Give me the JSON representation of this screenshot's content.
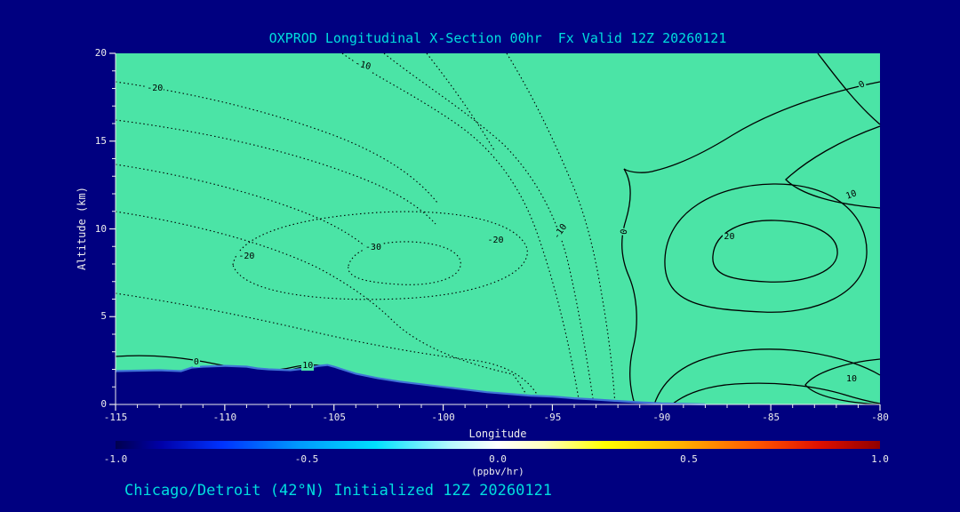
{
  "window": {
    "background": "#000080"
  },
  "chart_data": {
    "type": "contour",
    "title": "OXPROD Longitudinal X-Section 00hr  Fx Valid 12Z 20260121",
    "subtitle": "Chicago/Detroit (42°N) Initialized 12Z 20260121",
    "xlabel": "Longitude",
    "ylabel": "Altitude (km)",
    "xlim": [
      -115,
      -80
    ],
    "ylim": [
      0,
      20
    ],
    "x_ticks": [
      -115,
      -110,
      -105,
      -100,
      -95,
      -90,
      -85,
      -80
    ],
    "y_ticks": [
      0,
      5,
      10,
      15,
      20
    ],
    "grid": false,
    "plot_fill": "#4be4a6",
    "contour_line_color": "#000000",
    "negative_contour_style": "dotted",
    "positive_contour_style": "solid",
    "contour_labels": [
      {
        "value": "-20",
        "lon": -113.2,
        "alt": 18.0,
        "rot": 0
      },
      {
        "value": "-10",
        "lon": -103.7,
        "alt": 19.3,
        "rot": 15
      },
      {
        "value": "-20",
        "lon": -109.0,
        "alt": 8.4,
        "rot": 0
      },
      {
        "value": "-30",
        "lon": -103.2,
        "alt": 8.9,
        "rot": 0
      },
      {
        "value": "-20",
        "lon": -97.6,
        "alt": 9.3,
        "rot": 0
      },
      {
        "value": "-10",
        "lon": -94.6,
        "alt": 9.8,
        "rot": -55
      },
      {
        "value": "0",
        "lon": -91.7,
        "alt": 9.8,
        "rot": -78
      },
      {
        "value": "20",
        "lon": -86.9,
        "alt": 9.5,
        "rot": 0
      },
      {
        "value": "10",
        "lon": -81.3,
        "alt": 11.9,
        "rot": -20
      },
      {
        "value": "0",
        "lon": -80.8,
        "alt": 18.2,
        "rot": -30
      },
      {
        "value": "10",
        "lon": -81.3,
        "alt": 1.4,
        "rot": 0
      },
      {
        "value": "0",
        "lon": -111.3,
        "alt": 2.4,
        "rot": 0
      },
      {
        "value": "10",
        "lon": -106.2,
        "alt": 2.2,
        "rot": 0
      }
    ],
    "terrain": [
      [
        -115,
        1.9
      ],
      [
        -113,
        1.95
      ],
      [
        -112,
        1.9
      ],
      [
        -111.5,
        2.1
      ],
      [
        -111,
        2.15
      ],
      [
        -110,
        2.2
      ],
      [
        -109,
        2.15
      ],
      [
        -108.5,
        2.05
      ],
      [
        -108,
        2.0
      ],
      [
        -107,
        1.95
      ],
      [
        -106.3,
        2.05
      ],
      [
        -105.7,
        2.2
      ],
      [
        -105.3,
        2.25
      ],
      [
        -105,
        2.15
      ],
      [
        -104.5,
        1.95
      ],
      [
        -104,
        1.75
      ],
      [
        -103,
        1.5
      ],
      [
        -102,
        1.3
      ],
      [
        -101,
        1.15
      ],
      [
        -100,
        1.0
      ],
      [
        -99,
        0.85
      ],
      [
        -98,
        0.7
      ],
      [
        -97,
        0.6
      ],
      [
        -96,
        0.5
      ],
      [
        -95,
        0.45
      ],
      [
        -94,
        0.35
      ],
      [
        -93,
        0.28
      ],
      [
        -92,
        0.2
      ],
      [
        -91,
        0.12
      ],
      [
        -90,
        0.06
      ],
      [
        -89,
        0.03
      ],
      [
        -88,
        0.0
      ]
    ],
    "terrain_fill": "#000080",
    "terrain_edge_color": "#3f74d8",
    "colorbar": {
      "range": [
        -1,
        1
      ],
      "ticks": [
        {
          "v": -1.0,
          "label": "-1.0"
        },
        {
          "v": -0.5,
          "label": "-0.5"
        },
        {
          "v": 0.0,
          "label": "0.0"
        },
        {
          "v": 0.5,
          "label": "0.5"
        },
        {
          "v": 1.0,
          "label": "1.0"
        }
      ],
      "unit": "(ppbv/hr)",
      "stops": [
        [
          0,
          "#00004f"
        ],
        [
          6,
          "#0000a8"
        ],
        [
          14,
          "#0033ff"
        ],
        [
          24,
          "#0099ff"
        ],
        [
          34,
          "#00e0ff"
        ],
        [
          44,
          "#b8f8ff"
        ],
        [
          50,
          "#ffffff"
        ],
        [
          56,
          "#ffffc0"
        ],
        [
          64,
          "#ffff00"
        ],
        [
          74,
          "#ffb000"
        ],
        [
          84,
          "#ff5500"
        ],
        [
          92,
          "#e01000"
        ],
        [
          100,
          "#900000"
        ]
      ]
    }
  }
}
